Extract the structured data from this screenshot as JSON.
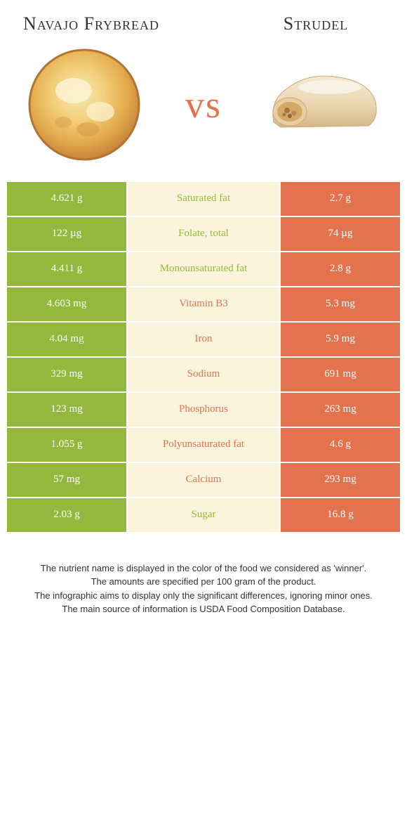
{
  "colors": {
    "green": "#94b83d",
    "orange": "#e3734e",
    "mid_bg": "#fbf4dd",
    "text": "#333333"
  },
  "food_left": "Navajo Frybread",
  "food_right": "Strudel",
  "vs_label": "vs",
  "rows": [
    {
      "left": "4.621 g",
      "label": "Saturated fat",
      "right": "2.7 g",
      "winner": "left"
    },
    {
      "left": "122 µg",
      "label": "Folate, total",
      "right": "74 µg",
      "winner": "left"
    },
    {
      "left": "4.411 g",
      "label": "Monounsaturated fat",
      "right": "2.8 g",
      "winner": "left"
    },
    {
      "left": "4.603 mg",
      "label": "Vitamin B3",
      "right": "5.3 mg",
      "winner": "right"
    },
    {
      "left": "4.04 mg",
      "label": "Iron",
      "right": "5.9 mg",
      "winner": "right"
    },
    {
      "left": "329 mg",
      "label": "Sodium",
      "right": "691 mg",
      "winner": "right"
    },
    {
      "left": "123 mg",
      "label": "Phosphorus",
      "right": "263 mg",
      "winner": "right"
    },
    {
      "left": "1.055 g",
      "label": "Polyunsaturated fat",
      "right": "4.6 g",
      "winner": "right"
    },
    {
      "left": "57 mg",
      "label": "Calcium",
      "right": "293 mg",
      "winner": "right"
    },
    {
      "left": "2.03 g",
      "label": "Sugar",
      "right": "16.8 g",
      "winner": "left"
    }
  ],
  "footer": {
    "line1": "The nutrient name is displayed in the color of the food we considered as 'winner'.",
    "line2": "The amounts are specified per 100 gram of the product.",
    "line3": "The infographic aims to display only the significant differences, ignoring minor ones.",
    "line4": "The main source of information is USDA Food Composition Database."
  }
}
